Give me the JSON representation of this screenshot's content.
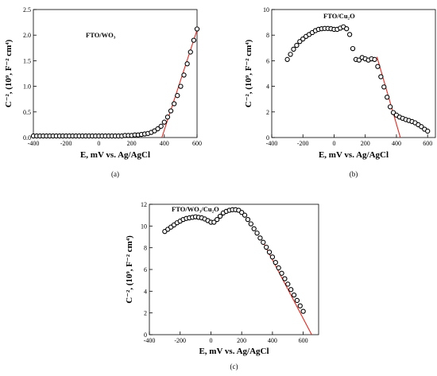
{
  "chart_data": [
    {
      "id": "a",
      "type": "scatter",
      "title": "FTO/WO₃",
      "caption": "(a)",
      "xlabel": "E, mV vs. Ag/AgCl",
      "ylabel": "C⁻², (10⁹, F⁻² cm⁴)",
      "xlim": [
        -400,
        600
      ],
      "ylim": [
        0.0,
        2.5
      ],
      "xticks": [
        "-400",
        "-200",
        "0",
        "200",
        "400",
        "600"
      ],
      "yticks": [
        "0.0",
        "0.5",
        "1.0",
        "1.5",
        "2.0",
        "2.5"
      ],
      "grid": false,
      "series": [
        {
          "marker": "open-circle",
          "x": [
            -400,
            -380,
            -360,
            -340,
            -320,
            -300,
            -280,
            -260,
            -240,
            -220,
            -200,
            -180,
            -160,
            -140,
            -120,
            -100,
            -80,
            -60,
            -40,
            -20,
            0,
            20,
            40,
            60,
            80,
            100,
            120,
            140,
            160,
            180,
            200,
            220,
            240,
            260,
            280,
            300,
            320,
            340,
            360,
            380,
            400,
            420,
            440,
            460,
            480,
            500,
            520,
            540,
            560,
            580,
            600
          ],
          "y": [
            0.03,
            0.03,
            0.03,
            0.03,
            0.03,
            0.03,
            0.03,
            0.03,
            0.03,
            0.03,
            0.03,
            0.03,
            0.03,
            0.03,
            0.03,
            0.03,
            0.03,
            0.03,
            0.03,
            0.03,
            0.03,
            0.03,
            0.03,
            0.03,
            0.03,
            0.03,
            0.03,
            0.03,
            0.04,
            0.04,
            0.04,
            0.05,
            0.05,
            0.06,
            0.07,
            0.08,
            0.1,
            0.13,
            0.17,
            0.22,
            0.3,
            0.4,
            0.52,
            0.66,
            0.82,
            1.0,
            1.22,
            1.44,
            1.67,
            1.9,
            2.12
          ]
        }
      ],
      "fit_line": {
        "color": "#e8261e",
        "x": [
          385,
          600
        ],
        "y": [
          0.0,
          2.1
        ]
      }
    },
    {
      "id": "b",
      "type": "scatter",
      "title": "FTO/Cu₂O",
      "caption": "(b)",
      "xlabel": "E, mV vs. Ag/AgCl",
      "ylabel": "C⁻², (10⁹, F⁻² cm⁴)",
      "xlim": [
        -400,
        650
      ],
      "ylim": [
        0,
        10
      ],
      "xticks": [
        "-400",
        "-200",
        "0",
        "200",
        "400",
        "600"
      ],
      "yticks": [
        "0",
        "2",
        "4",
        "6",
        "8",
        "10"
      ],
      "grid": false,
      "series": [
        {
          "marker": "open-circle",
          "x": [
            -300,
            -280,
            -260,
            -240,
            -220,
            -200,
            -180,
            -160,
            -140,
            -120,
            -100,
            -80,
            -60,
            -40,
            -20,
            0,
            20,
            40,
            60,
            80,
            100,
            120,
            140,
            160,
            180,
            200,
            220,
            240,
            260,
            280,
            300,
            320,
            340,
            360,
            380,
            400,
            420,
            440,
            460,
            480,
            500,
            520,
            540,
            560,
            580,
            600
          ],
          "y": [
            6.1,
            6.5,
            6.9,
            7.2,
            7.5,
            7.7,
            7.9,
            8.05,
            8.2,
            8.35,
            8.45,
            8.5,
            8.52,
            8.52,
            8.5,
            8.45,
            8.45,
            8.55,
            8.65,
            8.5,
            8.05,
            6.95,
            6.1,
            6.05,
            6.25,
            6.15,
            6.05,
            6.15,
            6.1,
            5.55,
            4.75,
            3.95,
            3.15,
            2.4,
            1.95,
            1.75,
            1.6,
            1.5,
            1.4,
            1.33,
            1.25,
            1.15,
            1.0,
            0.85,
            0.65,
            0.5
          ]
        }
      ],
      "fit_line": {
        "color": "#e8261e",
        "x": [
          275,
          425
        ],
        "y": [
          6.3,
          0.0
        ]
      }
    },
    {
      "id": "c",
      "type": "scatter",
      "title": "FTO/WO₃/Cu₂O",
      "caption": "(c)",
      "xlabel": "E, mV vs. Ag/AgCl",
      "ylabel": "C⁻², (10⁹, F⁻² cm⁴)",
      "xlim": [
        -400,
        700
      ],
      "ylim": [
        0,
        12
      ],
      "xticks": [
        "-400",
        "-200",
        "0",
        "200",
        "400",
        "600"
      ],
      "yticks": [
        "0",
        "2",
        "4",
        "6",
        "8",
        "10",
        "12"
      ],
      "grid": false,
      "series": [
        {
          "marker": "open-circle",
          "x": [
            -300,
            -280,
            -260,
            -240,
            -220,
            -200,
            -180,
            -160,
            -140,
            -120,
            -100,
            -80,
            -60,
            -40,
            -20,
            0,
            20,
            40,
            60,
            80,
            100,
            120,
            140,
            160,
            180,
            200,
            220,
            240,
            260,
            280,
            300,
            320,
            340,
            360,
            380,
            400,
            420,
            440,
            460,
            480,
            500,
            520,
            540,
            560,
            580,
            600
          ],
          "y": [
            9.5,
            9.7,
            9.9,
            10.1,
            10.3,
            10.45,
            10.6,
            10.7,
            10.75,
            10.8,
            10.85,
            10.8,
            10.75,
            10.65,
            10.5,
            10.35,
            10.35,
            10.6,
            10.9,
            11.2,
            11.35,
            11.45,
            11.5,
            11.5,
            11.45,
            11.25,
            11.0,
            10.6,
            10.2,
            9.75,
            9.35,
            8.9,
            8.5,
            8.05,
            7.6,
            7.15,
            6.65,
            6.15,
            5.65,
            5.15,
            4.65,
            4.15,
            3.65,
            3.15,
            2.65,
            2.15
          ]
        }
      ],
      "fit_line": {
        "color": "#e8261e",
        "x": [
          340,
          655
        ],
        "y": [
          8.5,
          0.0
        ]
      }
    }
  ]
}
